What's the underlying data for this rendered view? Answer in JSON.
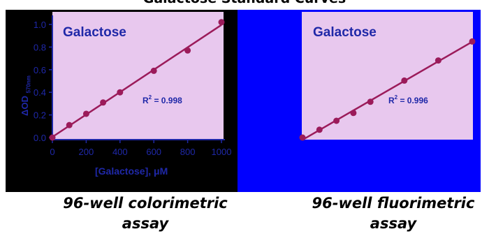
{
  "title": "Galactose Standard Curves",
  "captions": [
    {
      "line1": "96-well colorimetric",
      "line2": "assay"
    },
    {
      "line1": "96-well fluorimetric",
      "line2": "assay"
    }
  ],
  "colors": {
    "plot_bg": "#e8c8ee",
    "series": "#9b1b5a",
    "text": "#1f28a8",
    "panel_left": "#000000",
    "panel_right": "#0000ff"
  },
  "chart_data": [
    {
      "type": "scatter",
      "title": "Galactose",
      "xlabel": "[Galactose], μM",
      "ylabel": "ΔOD",
      "ylabel_sub": "570nm",
      "xlim": [
        0,
        1000
      ],
      "ylim": [
        0,
        1.0
      ],
      "x_ticks": [
        "0",
        "200",
        "400",
        "600",
        "800",
        "1000"
      ],
      "y_ticks": [
        "0.0",
        "0.2",
        "0.4",
        "0.6",
        "0.8",
        "1.0"
      ],
      "annotation": {
        "r2_label": "R",
        "r2_sup": "2",
        "r2_value": " = 0.998"
      },
      "series": [
        {
          "x": [
            0,
            100,
            200,
            300,
            400,
            600,
            800,
            1000
          ],
          "y": [
            0.0,
            0.11,
            0.21,
            0.31,
            0.4,
            0.59,
            0.77,
            1.02
          ],
          "fit": true
        }
      ],
      "grid": false
    },
    {
      "type": "scatter",
      "title": "Galactose",
      "xlabel": "",
      "ylabel": "",
      "xlim": [
        0,
        1000
      ],
      "ylim": [
        0,
        1.0
      ],
      "x_ticks": [],
      "y_ticks": [],
      "annotation": {
        "r2_label": "R",
        "r2_sup": "2",
        "r2_value": " = 0.996"
      },
      "series": [
        {
          "x": [
            0,
            100,
            200,
            300,
            400,
            600,
            800,
            1000
          ],
          "y": [
            0.0,
            0.07,
            0.15,
            0.22,
            0.32,
            0.51,
            0.69,
            0.86
          ],
          "fit": true
        }
      ],
      "grid": false
    }
  ]
}
